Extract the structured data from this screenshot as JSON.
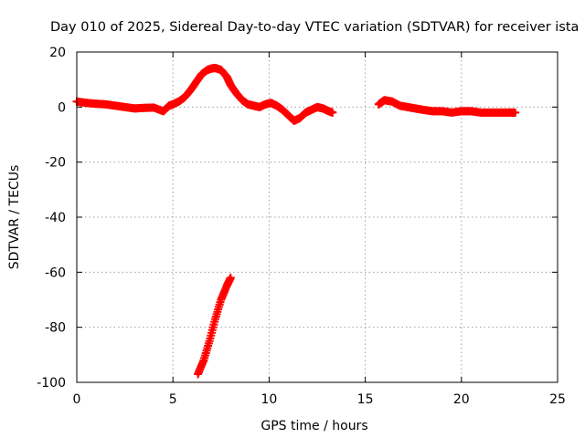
{
  "chart_data": {
    "type": "scatter",
    "title": "Day 010 of 2025, Sidereal Day-to-day VTEC variation (SDTVAR) for receiver ista",
    "xlabel": "GPS time / hours",
    "ylabel": "SDTVAR / TECUs",
    "xlim": [
      0,
      25
    ],
    "ylim": [
      -100,
      20
    ],
    "x_ticks": [
      0,
      5,
      10,
      15,
      20,
      25
    ],
    "y_ticks": [
      -100,
      -80,
      -60,
      -40,
      -20,
      0,
      20
    ],
    "x_tick_labels": [
      "0",
      "5",
      "10",
      "15",
      "20",
      "25"
    ],
    "y_tick_labels": [
      "-100",
      "-80",
      "-60",
      "-40",
      "-20",
      "0",
      "20"
    ],
    "grid": true,
    "marker": "plus",
    "series": [
      {
        "color": "#ff0000",
        "segments": [
          {
            "x": [
              0.0,
              0.5,
              1.0,
              1.5,
              2.0,
              2.5,
              3.0,
              3.5,
              4.0,
              4.5,
              4.8,
              5.0,
              5.3,
              5.6,
              5.9,
              6.2,
              6.5,
              6.8,
              7.0,
              7.2,
              7.5,
              7.8,
              8.0,
              8.3,
              8.6,
              8.9,
              9.2,
              9.5,
              9.8,
              10.1,
              10.4,
              10.7,
              11.0,
              11.3,
              11.6,
              11.9,
              12.2,
              12.5,
              12.8,
              13.1,
              13.3
            ],
            "y": [
              2.0,
              1.5,
              1.2,
              1.0,
              0.5,
              0.0,
              -0.5,
              -0.3,
              -0.2,
              -1.5,
              0.5,
              1.0,
              2.0,
              3.5,
              6.0,
              9.0,
              12.0,
              13.5,
              14.0,
              14.2,
              13.5,
              11.0,
              8.0,
              5.0,
              2.5,
              1.0,
              0.5,
              0.0,
              1.0,
              1.5,
              0.5,
              -1.0,
              -3.0,
              -5.0,
              -4.0,
              -2.0,
              -1.0,
              0.0,
              -0.5,
              -1.5,
              -2.0
            ]
          },
          {
            "x": [
              6.3,
              6.6,
              6.9,
              7.2,
              7.5,
              7.8,
              8.0
            ],
            "y": [
              -97.0,
              -92.0,
              -85.0,
              -77.0,
              -70.0,
              -65.0,
              -62.0
            ]
          },
          {
            "x": [
              15.7,
              16.0,
              16.4,
              16.8,
              17.2,
              17.6,
              18.0,
              18.5,
              19.0,
              19.5,
              20.0,
              20.5,
              21.0,
              21.5,
              22.0,
              22.5,
              22.8
            ],
            "y": [
              1.0,
              2.5,
              2.0,
              0.5,
              0.0,
              -0.5,
              -1.0,
              -1.5,
              -1.5,
              -2.0,
              -1.5,
              -1.5,
              -2.0,
              -2.0,
              -2.0,
              -2.0,
              -2.0
            ]
          }
        ]
      }
    ]
  }
}
